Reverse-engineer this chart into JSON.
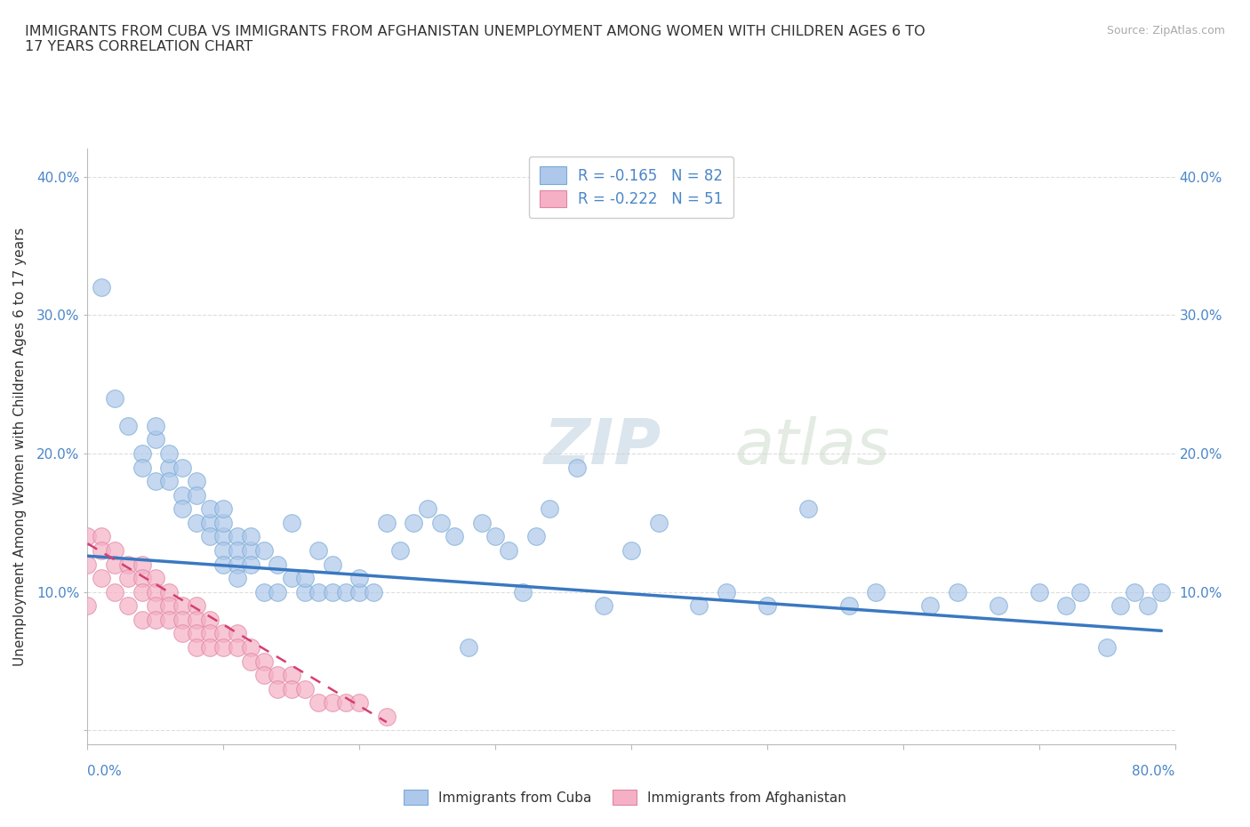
{
  "title": "IMMIGRANTS FROM CUBA VS IMMIGRANTS FROM AFGHANISTAN UNEMPLOYMENT AMONG WOMEN WITH CHILDREN AGES 6 TO\n17 YEARS CORRELATION CHART",
  "source": "Source: ZipAtlas.com",
  "ylabel": "Unemployment Among Women with Children Ages 6 to 17 years",
  "xlim": [
    0.0,
    0.8
  ],
  "ylim": [
    -0.01,
    0.42
  ],
  "yticks": [
    0.0,
    0.1,
    0.2,
    0.3,
    0.4
  ],
  "ytick_labels": [
    "",
    "10.0%",
    "20.0%",
    "30.0%",
    "40.0%"
  ],
  "cuba_color": "#adc8eb",
  "cuba_edge": "#7aaad4",
  "afghanistan_color": "#f5b0c5",
  "afghanistan_edge": "#e085a5",
  "trend_cuba_color": "#3a78c0",
  "trend_afgh_color": "#d44070",
  "legend_R_cuba": "R = -0.165",
  "legend_N_cuba": "N = 82",
  "legend_R_afgh": "R = -0.222",
  "legend_N_afgh": "N = 51",
  "cuba_x": [
    0.01,
    0.02,
    0.03,
    0.04,
    0.04,
    0.05,
    0.05,
    0.05,
    0.06,
    0.06,
    0.06,
    0.07,
    0.07,
    0.07,
    0.08,
    0.08,
    0.08,
    0.09,
    0.09,
    0.09,
    0.1,
    0.1,
    0.1,
    0.1,
    0.1,
    0.11,
    0.11,
    0.11,
    0.11,
    0.12,
    0.12,
    0.12,
    0.13,
    0.13,
    0.14,
    0.14,
    0.15,
    0.15,
    0.16,
    0.16,
    0.17,
    0.17,
    0.18,
    0.18,
    0.19,
    0.2,
    0.2,
    0.21,
    0.22,
    0.23,
    0.24,
    0.25,
    0.26,
    0.27,
    0.28,
    0.29,
    0.3,
    0.31,
    0.32,
    0.33,
    0.34,
    0.36,
    0.38,
    0.4,
    0.42,
    0.45,
    0.47,
    0.5,
    0.53,
    0.56,
    0.58,
    0.62,
    0.64,
    0.67,
    0.7,
    0.72,
    0.73,
    0.75,
    0.76,
    0.77,
    0.78,
    0.79
  ],
  "cuba_y": [
    0.32,
    0.24,
    0.22,
    0.2,
    0.19,
    0.18,
    0.21,
    0.22,
    0.19,
    0.2,
    0.18,
    0.17,
    0.19,
    0.16,
    0.18,
    0.17,
    0.15,
    0.15,
    0.16,
    0.14,
    0.14,
    0.15,
    0.16,
    0.13,
    0.12,
    0.14,
    0.13,
    0.12,
    0.11,
    0.13,
    0.14,
    0.12,
    0.13,
    0.1,
    0.12,
    0.1,
    0.11,
    0.15,
    0.1,
    0.11,
    0.1,
    0.13,
    0.12,
    0.1,
    0.1,
    0.1,
    0.11,
    0.1,
    0.15,
    0.13,
    0.15,
    0.16,
    0.15,
    0.14,
    0.06,
    0.15,
    0.14,
    0.13,
    0.1,
    0.14,
    0.16,
    0.19,
    0.09,
    0.13,
    0.15,
    0.09,
    0.1,
    0.09,
    0.16,
    0.09,
    0.1,
    0.09,
    0.1,
    0.09,
    0.1,
    0.09,
    0.1,
    0.06,
    0.09,
    0.1,
    0.09,
    0.1
  ],
  "afgh_x": [
    0.0,
    0.0,
    0.0,
    0.01,
    0.01,
    0.01,
    0.02,
    0.02,
    0.02,
    0.03,
    0.03,
    0.03,
    0.04,
    0.04,
    0.04,
    0.04,
    0.05,
    0.05,
    0.05,
    0.05,
    0.06,
    0.06,
    0.06,
    0.07,
    0.07,
    0.07,
    0.08,
    0.08,
    0.08,
    0.08,
    0.09,
    0.09,
    0.09,
    0.1,
    0.1,
    0.11,
    0.11,
    0.12,
    0.12,
    0.13,
    0.13,
    0.14,
    0.14,
    0.15,
    0.15,
    0.16,
    0.17,
    0.18,
    0.19,
    0.2,
    0.22
  ],
  "afgh_y": [
    0.14,
    0.12,
    0.09,
    0.14,
    0.13,
    0.11,
    0.13,
    0.12,
    0.1,
    0.12,
    0.11,
    0.09,
    0.12,
    0.11,
    0.1,
    0.08,
    0.11,
    0.1,
    0.09,
    0.08,
    0.1,
    0.09,
    0.08,
    0.09,
    0.08,
    0.07,
    0.09,
    0.08,
    0.07,
    0.06,
    0.08,
    0.07,
    0.06,
    0.07,
    0.06,
    0.07,
    0.06,
    0.06,
    0.05,
    0.05,
    0.04,
    0.04,
    0.03,
    0.04,
    0.03,
    0.03,
    0.02,
    0.02,
    0.02,
    0.02,
    0.01
  ],
  "cuba_trend_x0": 0.0,
  "cuba_trend_y0": 0.126,
  "cuba_trend_x1": 0.79,
  "cuba_trend_y1": 0.072,
  "afgh_trend_x0": 0.0,
  "afgh_trend_y0": 0.135,
  "afgh_trend_x1": 0.22,
  "afgh_trend_y1": 0.006
}
